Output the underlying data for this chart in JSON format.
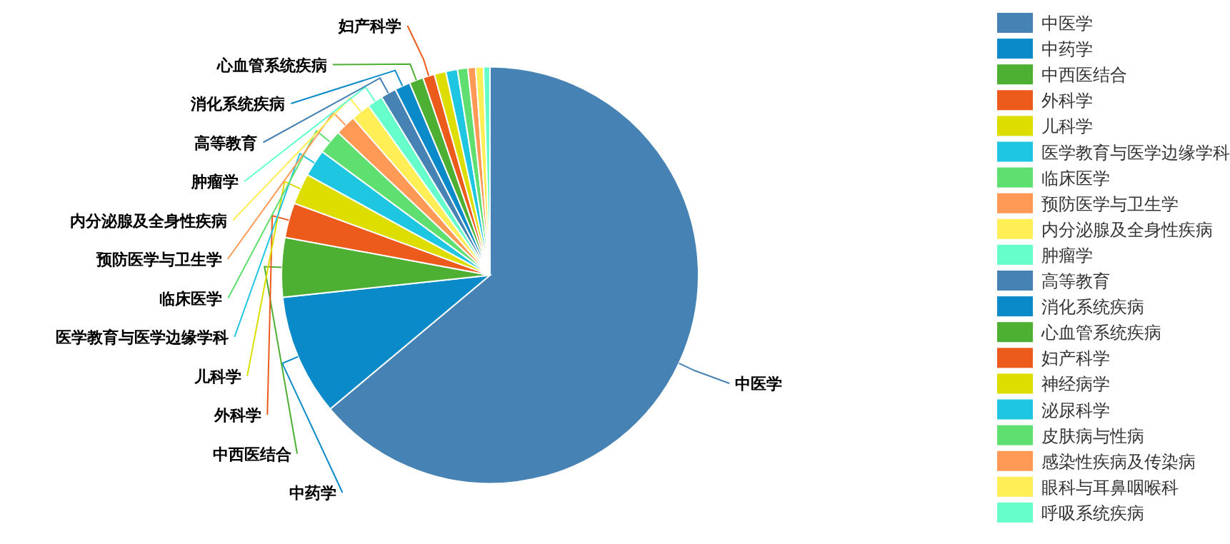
{
  "chart_data": {
    "type": "pie",
    "categories": [
      "中医学",
      "中药学",
      "中西医结合",
      "外科学",
      "儿科学",
      "医学教育与医学边缘学科",
      "临床医学",
      "预防医学与卫生学",
      "内分泌腺及全身性疾病",
      "肿瘤学",
      "高等教育",
      "消化系统疾病",
      "心血管系统疾病",
      "妇产科学",
      "神经病学",
      "泌尿科学",
      "皮肤病与性病",
      "感染性疾病及传染病",
      "眼科与耳鼻咽喉科",
      "呼吸系统疾病"
    ],
    "values": [
      63.9,
      9.4,
      4.6,
      2.7,
      2.4,
      2.1,
      1.9,
      1.6,
      1.5,
      1.2,
      1.2,
      1.2,
      1.1,
      0.9,
      0.9,
      0.9,
      0.8,
      0.6,
      0.6,
      0.5
    ],
    "colors": [
      "#4682b4",
      "#0a8ac8",
      "#4db033",
      "#ec5a1c",
      "#dddd00",
      "#1fc6e2",
      "#5fdf6f",
      "#ff9955",
      "#ffee55",
      "#66ffcc",
      "#4682b4",
      "#0a8ac8",
      "#4db033",
      "#ec5a1c",
      "#dddd00",
      "#1fc6e2",
      "#5fdf6f",
      "#ff9955",
      "#ffee55",
      "#66ffcc"
    ],
    "legend": "right"
  }
}
